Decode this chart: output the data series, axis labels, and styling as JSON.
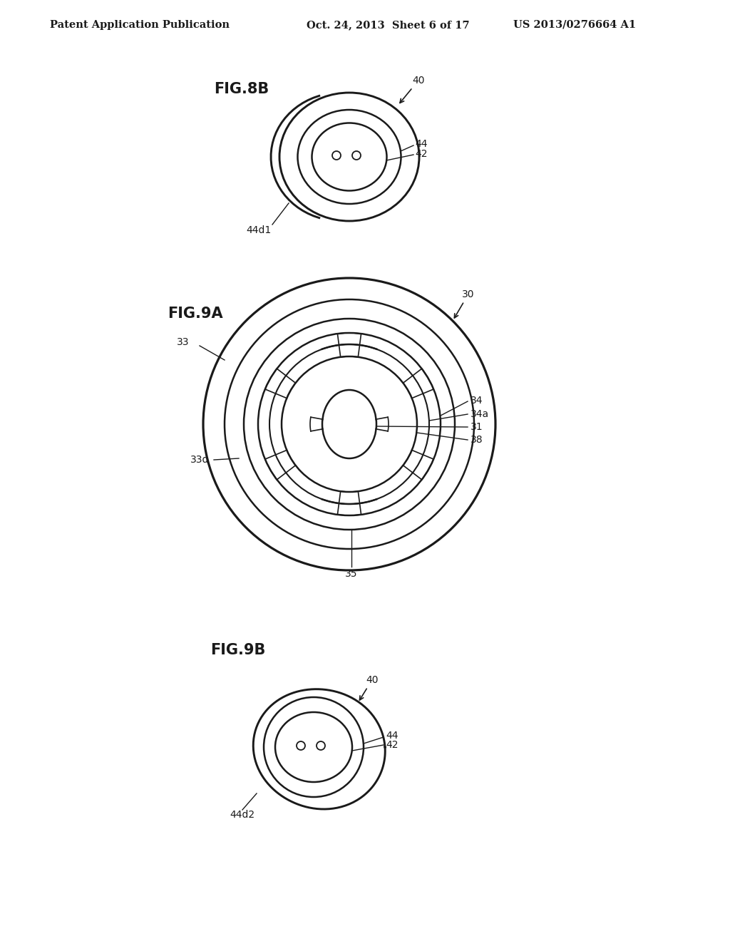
{
  "bg_color": "#ffffff",
  "header_left": "Patent Application Publication",
  "header_mid": "Oct. 24, 2013  Sheet 6 of 17",
  "header_right": "US 2013/0276664 A1",
  "fig8b_label": "FIG.8B",
  "fig9a_label": "FIG.9A",
  "fig9b_label": "FIG.9B",
  "line_color": "#1a1a1a",
  "line_width": 1.8,
  "annotation_fontsize": 10,
  "label_fontsize": 15,
  "header_fontsize": 10.5
}
